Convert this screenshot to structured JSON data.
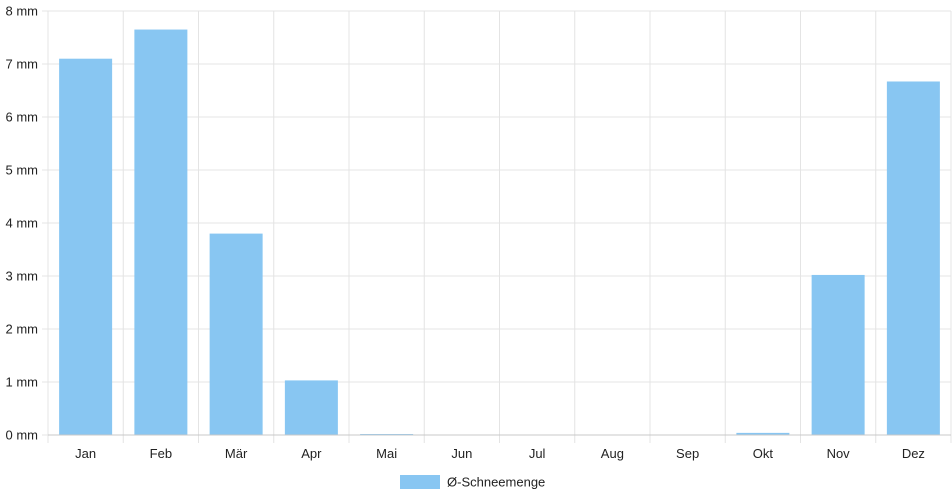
{
  "chart_data": {
    "type": "bar",
    "title": "",
    "xlabel": "",
    "ylabel": "",
    "categories": [
      "Jan",
      "Feb",
      "Mär",
      "Apr",
      "Mai",
      "Jun",
      "Jul",
      "Aug",
      "Sep",
      "Okt",
      "Nov",
      "Dez"
    ],
    "series": [
      {
        "name": "Ø-Schneemenge",
        "values": [
          7.1,
          7.65,
          3.8,
          1.03,
          0.01,
          0,
          0,
          0,
          0,
          0.04,
          3.02,
          6.67
        ],
        "color": "#88c6f2"
      }
    ],
    "ylim": [
      0,
      8
    ],
    "yticks": [
      0,
      1,
      2,
      3,
      4,
      5,
      6,
      7,
      8
    ],
    "ytick_unit": " mm",
    "grid": true,
    "legend_position": "bottom",
    "colors": {
      "grid": "#e4e4e4",
      "axis": "#c8c8c8",
      "text": "#222222"
    }
  }
}
